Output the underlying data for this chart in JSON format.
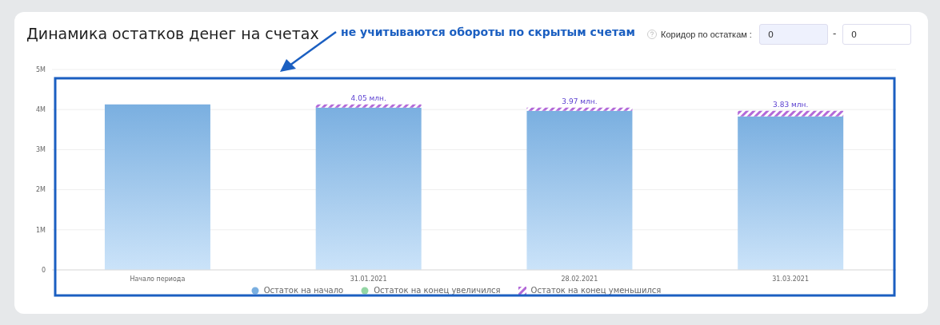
{
  "chart_data": {
    "type": "bar",
    "title": "Динамика остатков денег на счетах",
    "annotations": [
      "не учитываются обороты по скрытым счетам",
      "Коридор по остаткам :",
      "0",
      "-",
      "0"
    ],
    "categories": [
      "Начало периода",
      "31.01.2021",
      "28.02.2021",
      "31.03.2021"
    ],
    "stacked": true,
    "series": [
      {
        "name": "Остаток на начало",
        "color": "#7aafe0",
        "values": [
          4.13,
          4.05,
          3.97,
          3.83
        ],
        "value_labels": [
          null,
          "4.05 млн.",
          "3.97 млн.",
          "3.83 млн."
        ]
      },
      {
        "name": "Остаток на конец увеличился",
        "color": "#93d6a4",
        "values": [
          null,
          null,
          null,
          null
        ]
      },
      {
        "name": "Остаток на конец уменьшился",
        "color": "#b36ad8",
        "values": [
          null,
          0.08,
          0.08,
          0.14
        ]
      }
    ],
    "ylim": [
      0,
      5
    ],
    "yticks": [
      0,
      {
        "value": 1,
        "label": "1M"
      },
      {
        "value": 2,
        "label": "2M"
      },
      {
        "value": 3,
        "label": "3M"
      },
      {
        "value": 4,
        "label": "4M"
      },
      {
        "value": 5,
        "label": "5M"
      }
    ],
    "grid": "y",
    "legend": "bottom"
  }
}
